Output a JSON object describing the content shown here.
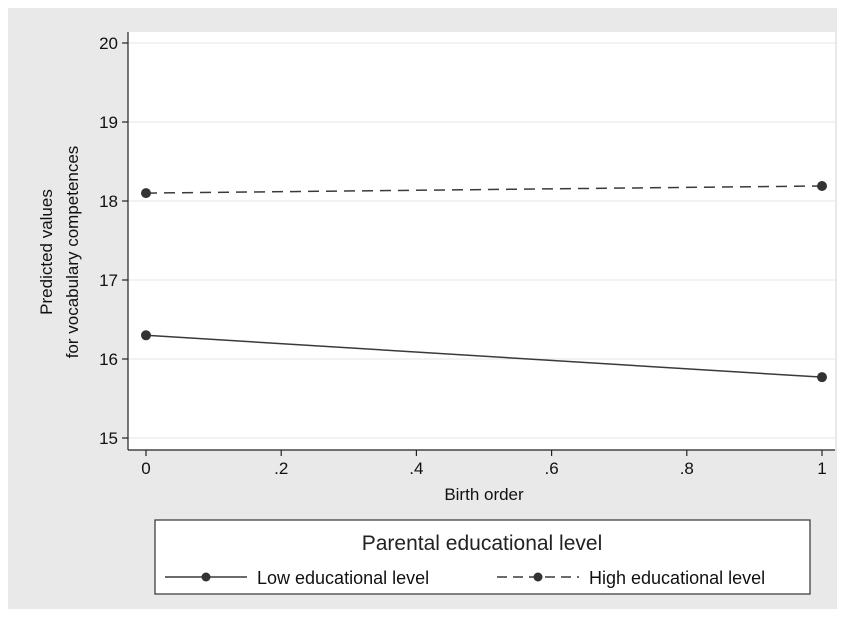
{
  "chart_data": {
    "type": "line",
    "xlabel": "Birth order",
    "ylabel_lines": [
      "Predicted values",
      "for vocabulary competences"
    ],
    "xlim": [
      0,
      1
    ],
    "ylim": [
      15,
      20
    ],
    "x_ticks": [
      0,
      0.2,
      0.4,
      0.6,
      0.8,
      1
    ],
    "x_tick_labels": [
      "0",
      ".2",
      ".4",
      ".6",
      ".8",
      "1"
    ],
    "y_ticks": [
      15,
      16,
      17,
      18,
      19,
      20
    ],
    "y_tick_labels": [
      "15",
      "16",
      "17",
      "18",
      "19",
      "20"
    ],
    "grid": true,
    "legend_position": "bottom",
    "legend_title": "Parental educational level",
    "series": [
      {
        "name": "Low educational level",
        "x": [
          0,
          1
        ],
        "y": [
          16.3,
          15.77
        ],
        "style": "solid",
        "color": "#3a3a3a"
      },
      {
        "name": "High educational level",
        "x": [
          0,
          1
        ],
        "y": [
          18.1,
          18.19
        ],
        "style": "dashed",
        "color": "#3a3a3a"
      }
    ]
  },
  "colors": {
    "panel_background": "#e9e9e9",
    "plot_background": "#ffffff",
    "line": "#3a3a3a"
  }
}
